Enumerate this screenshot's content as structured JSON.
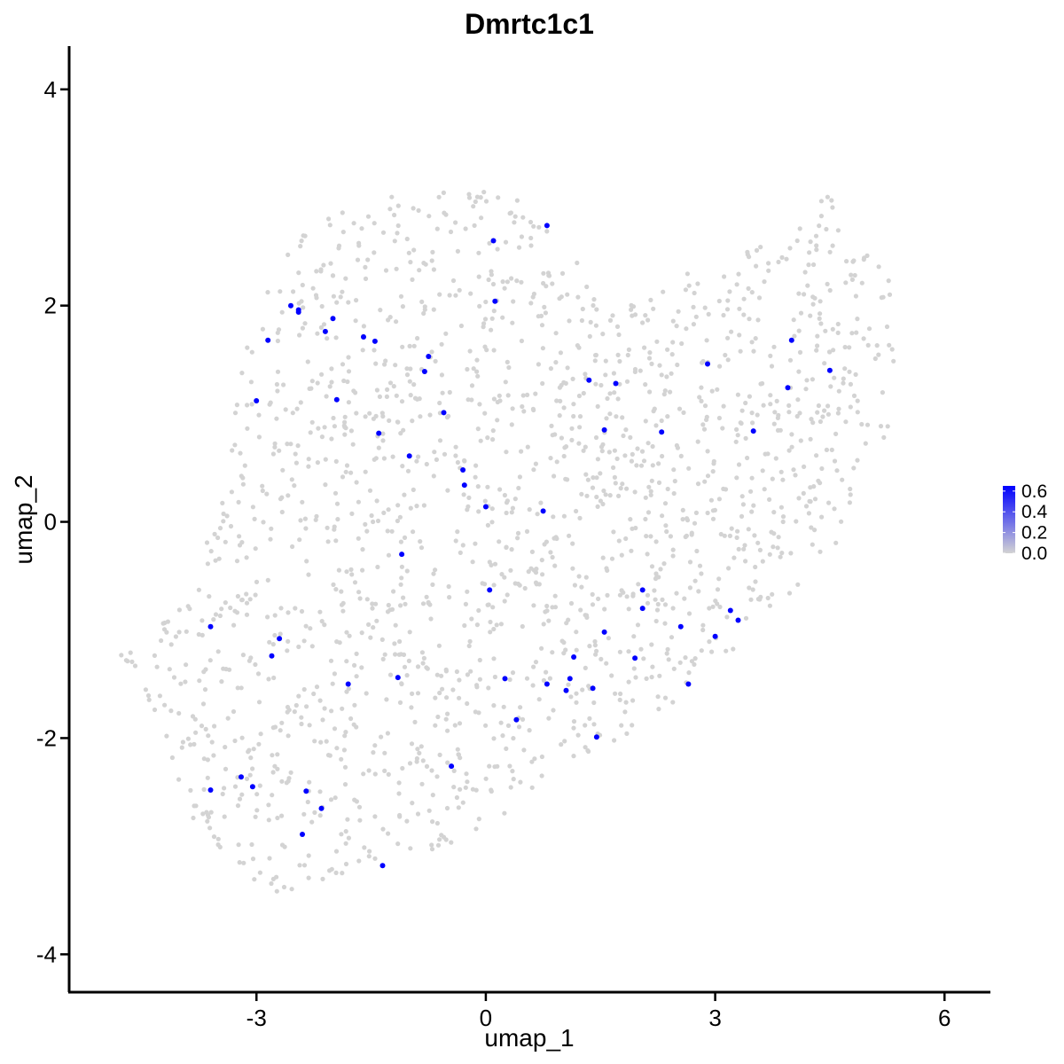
{
  "chart_data": {
    "type": "scatter",
    "title": "Dmrtc1c1",
    "xlabel": "umap_1",
    "ylabel": "umap_2",
    "xlim": [
      -5.45,
      6.6
    ],
    "ylim": [
      -4.35,
      4.4
    ],
    "x_ticks": [
      -3,
      0,
      3,
      6
    ],
    "x_tick_labels": [
      "-3",
      "0",
      "3",
      "6"
    ],
    "y_ticks": [
      -4,
      -2,
      0,
      2,
      4
    ],
    "y_tick_labels": [
      "-4",
      "-2",
      "0",
      "2",
      "4"
    ],
    "grid": false,
    "legend": {
      "placement": "right",
      "type": "colorbar",
      "low_color": "#d3d3d3",
      "high_color": "#0000ff",
      "range": [
        0,
        0.65
      ],
      "ticks": [
        0.0,
        0.2,
        0.4,
        0.6
      ],
      "tick_labels": [
        "0.0",
        "0.2",
        "0.4",
        "0.6"
      ]
    },
    "colors": {
      "background_point": "#d3d3d3",
      "expressing_point": "#0000ff"
    },
    "background_points": {
      "description": "approx. 1800 non-expressing cells; value 0",
      "count": 1800,
      "value": 0,
      "region_polygon": [
        [
          -4.8,
          -1.2
        ],
        [
          -4.3,
          -1.8
        ],
        [
          -4.0,
          -2.6
        ],
        [
          -3.3,
          -3.2
        ],
        [
          -2.6,
          -3.5
        ],
        [
          -2.0,
          -3.3
        ],
        [
          -1.4,
          -3.2
        ],
        [
          -0.5,
          -3.0
        ],
        [
          0.5,
          -2.6
        ],
        [
          1.6,
          -2.1
        ],
        [
          2.6,
          -1.6
        ],
        [
          3.3,
          -1.2
        ],
        [
          3.8,
          -0.8
        ],
        [
          4.6,
          -0.2
        ],
        [
          5.3,
          0.8
        ],
        [
          5.4,
          2.0
        ],
        [
          5.2,
          2.4
        ],
        [
          4.8,
          2.7
        ],
        [
          4.5,
          3.05
        ],
        [
          4.3,
          2.9
        ],
        [
          3.8,
          2.6
        ],
        [
          3.2,
          2.6
        ],
        [
          2.6,
          2.3
        ],
        [
          2.0,
          2.05
        ],
        [
          1.6,
          1.9
        ],
        [
          1.2,
          2.4
        ],
        [
          0.7,
          2.8
        ],
        [
          0.2,
          3.1
        ],
        [
          -0.6,
          3.1
        ],
        [
          -1.4,
          3.0
        ],
        [
          -2.2,
          2.8
        ],
        [
          -2.7,
          2.4
        ],
        [
          -3.0,
          2.0
        ],
        [
          -3.2,
          1.4
        ],
        [
          -3.4,
          0.6
        ],
        [
          -3.6,
          0.0
        ],
        [
          -3.8,
          -0.5
        ],
        [
          -4.3,
          -1.0
        ]
      ],
      "seed": 7
    },
    "series": [
      {
        "name": "",
        "value": 0.65,
        "points": [
          [
            0.8,
            2.74
          ],
          [
            0.1,
            2.6
          ],
          [
            0.12,
            2.04
          ],
          [
            -2.55,
            2.0
          ],
          [
            -2.45,
            1.96
          ],
          [
            -2.45,
            1.94
          ],
          [
            -2.0,
            1.88
          ],
          [
            -2.1,
            1.76
          ],
          [
            -1.6,
            1.71
          ],
          [
            -1.45,
            1.67
          ],
          [
            -2.85,
            1.68
          ],
          [
            -0.75,
            1.53
          ],
          [
            -0.8,
            1.39
          ],
          [
            -3.0,
            1.12
          ],
          [
            -1.95,
            1.13
          ],
          [
            -0.55,
            1.01
          ],
          [
            -1.4,
            0.82
          ],
          [
            -1.0,
            0.61
          ],
          [
            -0.3,
            0.48
          ],
          [
            -0.28,
            0.34
          ],
          [
            0.0,
            0.14
          ],
          [
            0.75,
            0.1
          ],
          [
            1.35,
            1.31
          ],
          [
            1.7,
            1.28
          ],
          [
            1.55,
            0.85
          ],
          [
            2.3,
            0.83
          ],
          [
            2.9,
            1.46
          ],
          [
            3.5,
            0.84
          ],
          [
            4.0,
            1.68
          ],
          [
            4.5,
            1.4
          ],
          [
            3.95,
            1.24
          ],
          [
            -1.1,
            -0.3
          ],
          [
            0.05,
            -0.63
          ],
          [
            2.05,
            -0.63
          ],
          [
            2.05,
            -0.8
          ],
          [
            1.55,
            -1.02
          ],
          [
            2.55,
            -0.97
          ],
          [
            3.2,
            -0.82
          ],
          [
            3.3,
            -0.91
          ],
          [
            3.0,
            -1.06
          ],
          [
            1.15,
            -1.25
          ],
          [
            1.95,
            -1.26
          ],
          [
            0.25,
            -1.45
          ],
          [
            0.8,
            -1.5
          ],
          [
            1.1,
            -1.45
          ],
          [
            1.05,
            -1.56
          ],
          [
            1.4,
            -1.54
          ],
          [
            2.65,
            -1.5
          ],
          [
            0.4,
            -1.83
          ],
          [
            1.45,
            -1.99
          ],
          [
            -1.15,
            -1.44
          ],
          [
            -1.8,
            -1.5
          ],
          [
            -3.6,
            -0.97
          ],
          [
            -2.7,
            -1.08
          ],
          [
            -2.8,
            -1.24
          ],
          [
            -0.45,
            -2.26
          ],
          [
            -3.6,
            -2.48
          ],
          [
            -3.2,
            -2.36
          ],
          [
            -3.05,
            -2.45
          ],
          [
            -2.35,
            -2.49
          ],
          [
            -2.15,
            -2.65
          ],
          [
            -2.4,
            -2.89
          ],
          [
            -1.35,
            -3.18
          ]
        ]
      }
    ]
  }
}
